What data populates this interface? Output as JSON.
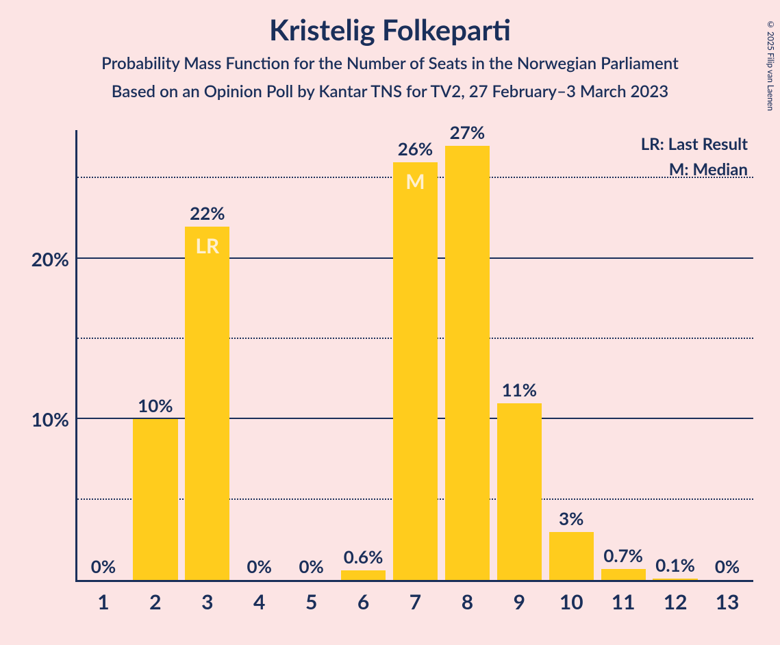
{
  "title": "Kristelig Folkeparti",
  "subtitle1": "Probability Mass Function for the Number of Seats in the Norwegian Parliament",
  "subtitle2": "Based on an Opinion Poll by Kantar TNS for TV2, 27 February–3 March 2023",
  "copyright": "© 2025 Filip van Laenen",
  "legend": {
    "lr": "LR: Last Result",
    "m": "M: Median"
  },
  "chart": {
    "type": "bar",
    "bar_color": "#ffcc1d",
    "text_color": "#1a2f5a",
    "in_bar_text_color": "#fff0d0",
    "background_color": "#fce4e4",
    "axis_color": "#1a2f5a",
    "grid_solid_color": "#1a2f5a",
    "grid_dotted_color": "#1a2f5a",
    "ymax": 28,
    "gridlines": [
      {
        "y": 5,
        "style": "dotted",
        "label": ""
      },
      {
        "y": 10,
        "style": "solid",
        "label": "10%"
      },
      {
        "y": 15,
        "style": "dotted",
        "label": ""
      },
      {
        "y": 20,
        "style": "solid",
        "label": "20%"
      },
      {
        "y": 25,
        "style": "dotted",
        "label": ""
      }
    ],
    "categories": [
      "1",
      "2",
      "3",
      "4",
      "5",
      "6",
      "7",
      "8",
      "9",
      "10",
      "11",
      "12",
      "13"
    ],
    "values": [
      0,
      10,
      22,
      0,
      0,
      0.6,
      26,
      27,
      11,
      3,
      0.7,
      0.1,
      0
    ],
    "value_labels": [
      "0%",
      "10%",
      "22%",
      "0%",
      "0%",
      "0.6%",
      "26%",
      "27%",
      "11%",
      "3%",
      "0.7%",
      "0.1%",
      "0%"
    ],
    "in_bar_labels": [
      "",
      "",
      "LR",
      "",
      "",
      "",
      "M",
      "",
      "",
      "",
      "",
      "",
      ""
    ],
    "bar_width_ratio": 0.86,
    "title_fontsize": 42,
    "subtitle_fontsize": 24,
    "axis_label_fontsize": 30,
    "value_label_fontsize": 26,
    "legend_fontsize": 24
  }
}
